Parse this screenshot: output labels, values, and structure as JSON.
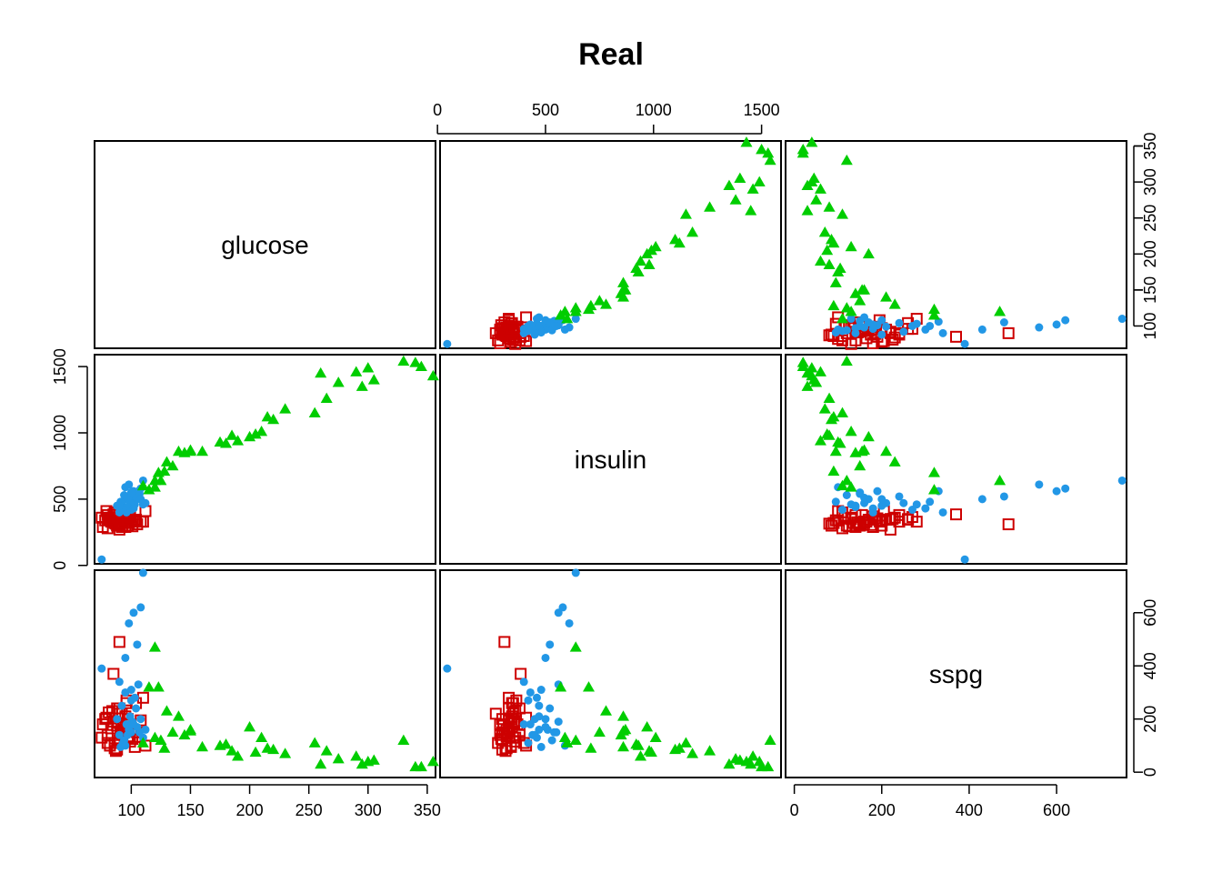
{
  "chart_data": {
    "type": "scatter",
    "title": "Real",
    "variables": [
      "glucose",
      "insulin",
      "sspg"
    ],
    "axes": {
      "glucose": {
        "ticks": [
          100,
          150,
          200,
          250,
          300,
          350
        ],
        "range": [
          69,
          357
        ]
      },
      "insulin": {
        "ticks": [
          0,
          500,
          1000,
          1500
        ],
        "range": [
          12,
          1590
        ]
      },
      "sspg": {
        "ticks": [
          0,
          200,
          400,
          600
        ],
        "range": [
          -20,
          760
        ]
      }
    },
    "groups": [
      {
        "marker": "open-square",
        "color": "#CD0000"
      },
      {
        "marker": "filled-circle",
        "color": "#2297E6"
      },
      {
        "marker": "filled-triangle",
        "color": "#00CD00"
      }
    ],
    "points": {
      "group1": [
        [
          90,
          310,
          490
        ],
        [
          88,
          330,
          240
        ],
        [
          92,
          350,
          220
        ],
        [
          85,
          355,
          190
        ],
        [
          95,
          290,
          180
        ],
        [
          100,
          330,
          160
        ],
        [
          80,
          380,
          140
        ],
        [
          90,
          300,
          120
        ],
        [
          75,
          360,
          130
        ],
        [
          82,
          340,
          100
        ],
        [
          86,
          320,
          90
        ],
        [
          93,
          345,
          170
        ],
        [
          97,
          300,
          200
        ],
        [
          105,
          310,
          150
        ],
        [
          110,
          330,
          280
        ],
        [
          96,
          350,
          260
        ],
        [
          84,
          360,
          230
        ],
        [
          78,
          340,
          200
        ],
        [
          88,
          305,
          175
        ],
        [
          91,
          325,
          145
        ],
        [
          99,
          360,
          115
        ],
        [
          103,
          340,
          95
        ],
        [
          87,
          315,
          80
        ],
        [
          80,
          280,
          110
        ],
        [
          92,
          300,
          150
        ],
        [
          95,
          345,
          210
        ],
        [
          89,
          355,
          185
        ],
        [
          83,
          330,
          165
        ],
        [
          98,
          320,
          135
        ],
        [
          101,
          295,
          125
        ],
        [
          94,
          380,
          155
        ],
        [
          86,
          400,
          110
        ],
        [
          79,
          410,
          205
        ],
        [
          90,
          380,
          240
        ],
        [
          96,
          365,
          270
        ],
        [
          104,
          345,
          260
        ],
        [
          108,
          330,
          195
        ],
        [
          88,
          300,
          85
        ],
        [
          92,
          290,
          140
        ],
        [
          81,
          350,
          225
        ],
        [
          99,
          370,
          180
        ],
        [
          85,
          385,
          370
        ],
        [
          112,
          410,
          100
        ],
        [
          97,
          350,
          130
        ],
        [
          93,
          320,
          160
        ],
        [
          90,
          270,
          220
        ],
        [
          76,
          290,
          180
        ]
      ],
      "group2": [
        [
          75,
          45,
          390
        ],
        [
          90,
          400,
          340
        ],
        [
          95,
          430,
          300
        ],
        [
          100,
          480,
          310
        ],
        [
          105,
          520,
          480
        ],
        [
          108,
          580,
          620
        ],
        [
          102,
          560,
          600
        ],
        [
          98,
          610,
          560
        ],
        [
          110,
          640,
          750
        ],
        [
          95,
          500,
          430
        ],
        [
          92,
          470,
          250
        ],
        [
          88,
          450,
          200
        ],
        [
          100,
          420,
          270
        ],
        [
          103,
          460,
          280
        ],
        [
          107,
          540,
          150
        ],
        [
          98,
          510,
          160
        ],
        [
          96,
          400,
          180
        ],
        [
          94,
          530,
          120
        ],
        [
          101,
          560,
          190
        ],
        [
          99,
          470,
          210
        ],
        [
          105,
          500,
          170
        ],
        [
          110,
          460,
          130
        ],
        [
          97,
          440,
          140
        ],
        [
          93,
          420,
          110
        ],
        [
          91,
          480,
          95
        ],
        [
          104,
          520,
          240
        ],
        [
          106,
          560,
          330
        ],
        [
          95,
          590,
          100
        ],
        [
          100,
          550,
          150
        ],
        [
          108,
          500,
          200
        ],
        [
          112,
          470,
          160
        ],
        [
          102,
          430,
          180
        ],
        [
          90,
          450,
          140
        ]
      ],
      "group3": [
        [
          120,
          640,
          470
        ],
        [
          115,
          570,
          320
        ],
        [
          123,
          700,
          320
        ],
        [
          130,
          780,
          230
        ],
        [
          140,
          860,
          210
        ],
        [
          150,
          870,
          160
        ],
        [
          125,
          640,
          120
        ],
        [
          145,
          850,
          140
        ],
        [
          160,
          860,
          95
        ],
        [
          175,
          930,
          100
        ],
        [
          185,
          980,
          80
        ],
        [
          200,
          970,
          170
        ],
        [
          210,
          1010,
          130
        ],
        [
          215,
          1120,
          90
        ],
        [
          230,
          1180,
          70
        ],
        [
          255,
          1150,
          110
        ],
        [
          265,
          1260,
          80
        ],
        [
          275,
          1380,
          50
        ],
        [
          290,
          1460,
          60
        ],
        [
          300,
          1490,
          40
        ],
        [
          305,
          1400,
          45
        ],
        [
          330,
          1540,
          120
        ],
        [
          340,
          1530,
          20
        ],
        [
          355,
          1430,
          40
        ],
        [
          345,
          1500,
          20
        ],
        [
          295,
          1350,
          30
        ],
        [
          260,
          1450,
          30
        ],
        [
          120,
          590,
          130
        ],
        [
          135,
          750,
          150
        ],
        [
          110,
          600,
          110
        ],
        [
          190,
          940,
          60
        ],
        [
          220,
          1100,
          85
        ],
        [
          180,
          920,
          105
        ],
        [
          205,
          990,
          75
        ],
        [
          150,
          860,
          155
        ],
        [
          128,
          710,
          90
        ]
      ]
    }
  }
}
